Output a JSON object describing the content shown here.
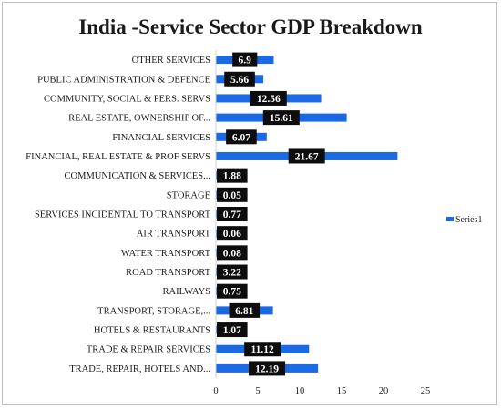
{
  "chart_data": {
    "type": "bar",
    "orientation": "horizontal",
    "title": "India -Service Sector GDP Breakdown",
    "categories": [
      "OTHER SERVICES",
      "PUBLIC ADMINISTRATION & DEFENCE",
      "COMMUNITY, SOCIAL & PERS. SERVS",
      "REAL ESTATE, OWNERSHIP OF...",
      "FINANCIAL SERVICES",
      "FINANCIAL, REAL ESTATE & PROF SERVS",
      "COMMUNICATION & SERVICES...",
      "STORAGE",
      "SERVICES INCIDENTAL TO TRANSPORT",
      "AIR TRANSPORT",
      "WATER TRANSPORT",
      "ROAD TRANSPORT",
      "RAILWAYS",
      "TRANSPORT, STORAGE,...",
      "HOTELS & RESTAURANTS",
      "TRADE & REPAIR SERVICES",
      "TRADE, REPAIR, HOTELS AND..."
    ],
    "series": [
      {
        "name": "Series1",
        "values": [
          6.9,
          5.66,
          12.56,
          15.61,
          6.07,
          21.67,
          1.88,
          0.05,
          0.77,
          0.06,
          0.08,
          3.22,
          0.75,
          6.81,
          1.07,
          11.12,
          12.19
        ],
        "labels": [
          "6.9",
          "5.66",
          "12.56",
          "15.61",
          "6.07",
          "21.67",
          "1.88",
          "0.05",
          "0.77",
          "0.06",
          "0.08",
          "3.22",
          "0.75",
          "6.81",
          "1.07",
          "11.12",
          "12.19"
        ]
      }
    ],
    "xlim": [
      0,
      25
    ],
    "xticks": [
      "0",
      "5",
      "10",
      "15",
      "20",
      "25"
    ],
    "grid": false,
    "legend": "right",
    "colors": {
      "bar": "#1a6ae6",
      "label_bg": "#0d0d0d",
      "label_text": "#ffffff"
    }
  }
}
